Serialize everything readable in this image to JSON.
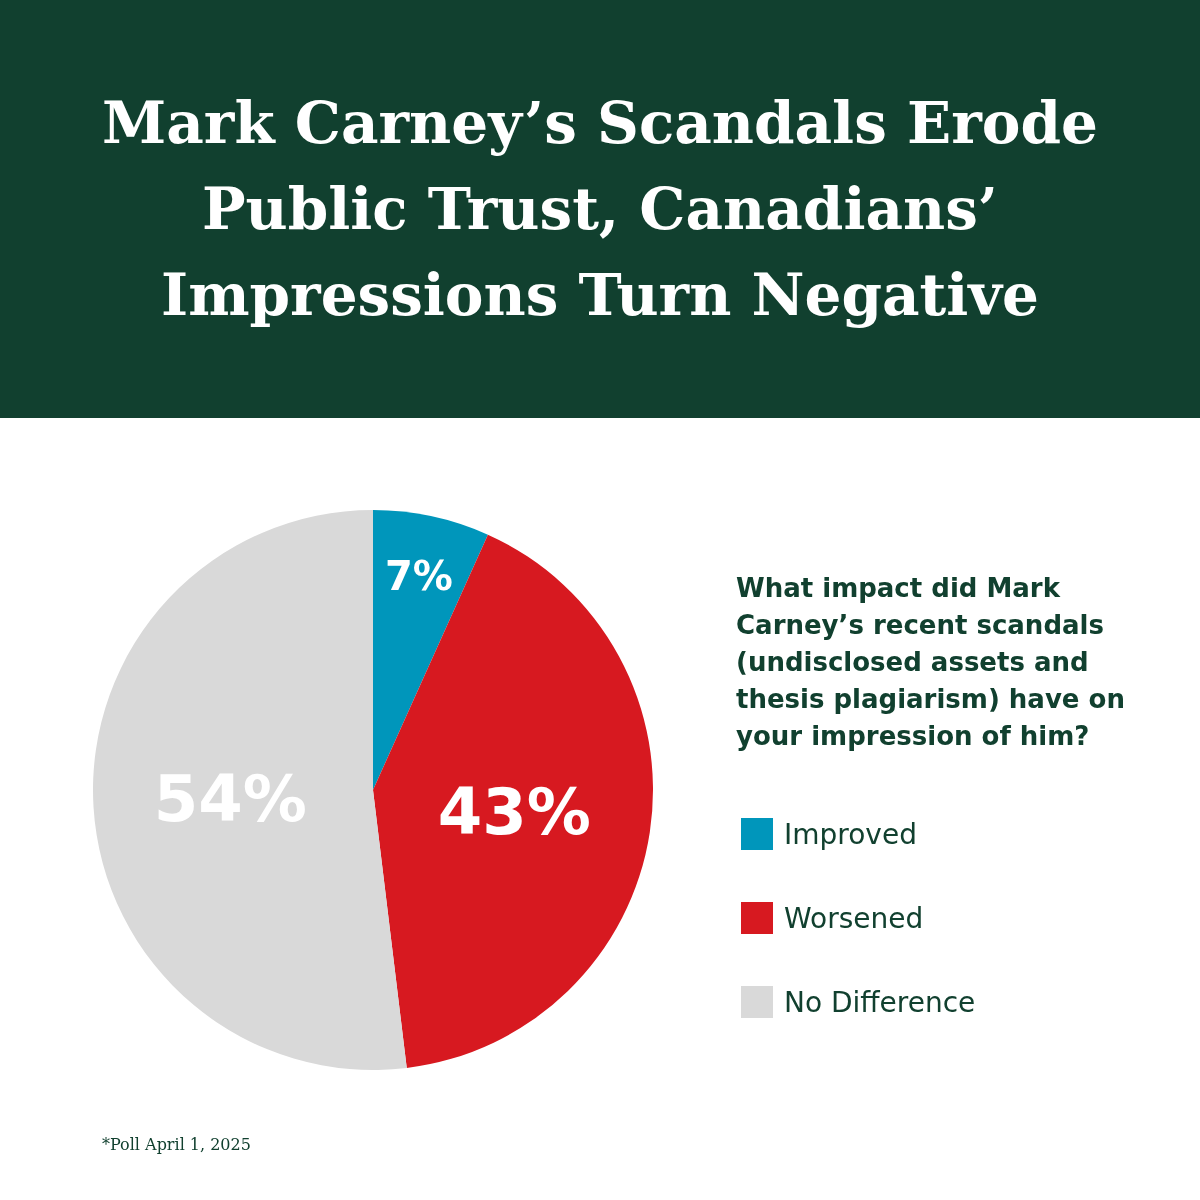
{
  "chart_data": {
    "type": "pie",
    "title": "Mark Carney’s Scandals Erode Public Trust, Canadians’ Impressions Turn Negative",
    "legend_title": "What impact did Mark Carney’s recent scandals (undisclosed assets and thesis plagiarism) have on your impression of him?",
    "categories": [
      "Improved",
      "Worsened",
      "No Difference"
    ],
    "values": [
      7,
      43,
      54
    ],
    "colors": [
      "#0096bb",
      "#d71920",
      "#d9d9d9"
    ],
    "value_labels": [
      "7%",
      "43%",
      "54%"
    ],
    "legend": "right",
    "annotations": [
      "*Poll April 1, 2025"
    ]
  }
}
